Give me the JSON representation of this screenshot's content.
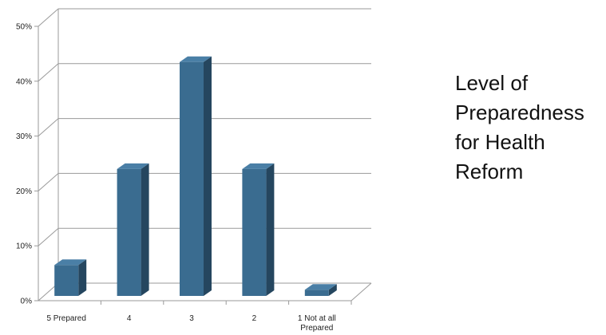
{
  "chart_data": {
    "type": "bar",
    "title": "Level of Preparedness for Health Reform",
    "categories": [
      "5 Prepared",
      "4",
      "3",
      "2",
      "1 Not at all Prepared"
    ],
    "values": [
      6.5,
      24,
      43.5,
      24,
      2
    ],
    "unit": "%",
    "ylim": [
      0,
      50
    ],
    "yticks": [
      "0%",
      "10%",
      "20%",
      "30%",
      "40%",
      "50%"
    ],
    "grid": true,
    "legend": "none",
    "colors": {
      "bar_front": "#3a6c90",
      "bar_side": "#25465f",
      "bar_top": "#4a7fa6",
      "grid": "#9a9a9a"
    }
  }
}
